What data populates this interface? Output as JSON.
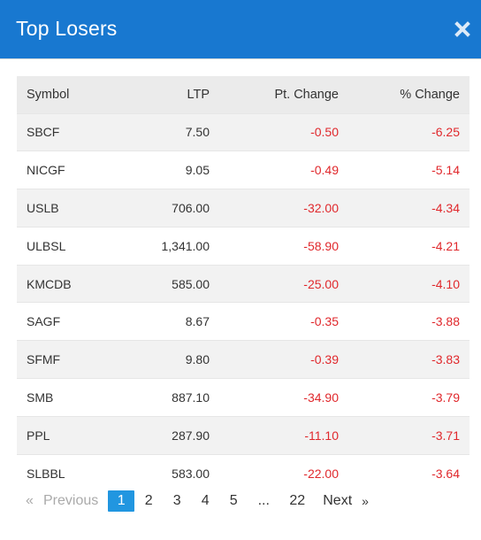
{
  "modal": {
    "title": "Top Losers",
    "close_icon": "close-icon",
    "header_color": "#1878d0"
  },
  "table": {
    "headers": [
      "Symbol",
      "LTP",
      "Pt. Change",
      "% Change"
    ],
    "rows": [
      {
        "symbol": "SBCF",
        "ltp": "7.50",
        "pt_change": "-0.50",
        "pct_change": "-6.25"
      },
      {
        "symbol": "NICGF",
        "ltp": "9.05",
        "pt_change": "-0.49",
        "pct_change": "-5.14"
      },
      {
        "symbol": "USLB",
        "ltp": "706.00",
        "pt_change": "-32.00",
        "pct_change": "-4.34"
      },
      {
        "symbol": "ULBSL",
        "ltp": "1,341.00",
        "pt_change": "-58.90",
        "pct_change": "-4.21"
      },
      {
        "symbol": "KMCDB",
        "ltp": "585.00",
        "pt_change": "-25.00",
        "pct_change": "-4.10"
      },
      {
        "symbol": "SAGF",
        "ltp": "8.67",
        "pt_change": "-0.35",
        "pct_change": "-3.88"
      },
      {
        "symbol": "SFMF",
        "ltp": "9.80",
        "pt_change": "-0.39",
        "pct_change": "-3.83"
      },
      {
        "symbol": "SMB",
        "ltp": "887.10",
        "pt_change": "-34.90",
        "pct_change": "-3.79"
      },
      {
        "symbol": "PPL",
        "ltp": "287.90",
        "pt_change": "-11.10",
        "pct_change": "-3.71"
      },
      {
        "symbol": "SLBBL",
        "ltp": "583.00",
        "pt_change": "-22.00",
        "pct_change": "-3.64"
      }
    ],
    "negative_color": "#e0282c"
  },
  "pagination": {
    "prev_arrow": "«",
    "prev_label": "Previous",
    "pages": [
      "1",
      "2",
      "3",
      "4",
      "5",
      "...",
      "22"
    ],
    "current_page": "1",
    "next_label": "Next",
    "next_arrow": "»",
    "active_color": "#2196e0"
  }
}
